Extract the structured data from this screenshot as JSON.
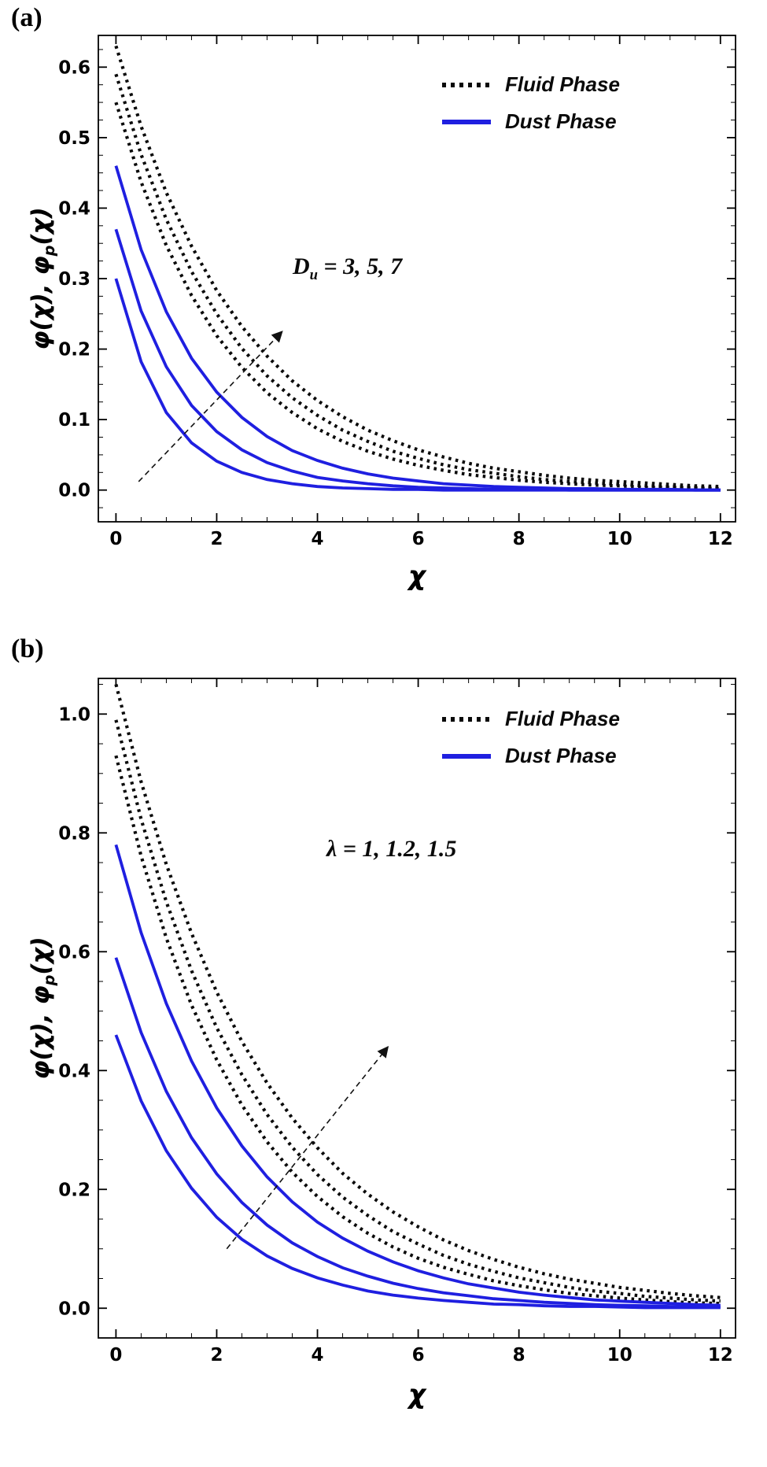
{
  "figure": {
    "colors": {
      "fluid": "#0a0a0a",
      "dust": "#1f1fe0",
      "frame": "#000000",
      "arrow": "#111111"
    },
    "panels": [
      {
        "panel_label": "(a)",
        "x_axis_label": "χ",
        "y_axis_label": {
          "pre": "φ(χ), φ",
          "sub": "p",
          "post": "(χ)"
        },
        "legend": {
          "fluid_label": "Fluid Phase",
          "dust_label": "Dust Phase"
        },
        "annotation": {
          "pre": "D",
          "sub": "u",
          "post": " = 3, 5, 7"
        }
      },
      {
        "panel_label": "(b)",
        "x_axis_label": "χ",
        "y_axis_label": {
          "pre": "φ(χ), φ",
          "sub": "p",
          "post": "(χ)"
        },
        "legend": {
          "fluid_label": "Fluid Phase",
          "dust_label": "Dust Phase"
        },
        "annotation": {
          "pre": "λ",
          "sub": "",
          "post": " = 1, 1.2, 1.5"
        }
      }
    ]
  },
  "chart_data": [
    {
      "type": "line",
      "panel": "a",
      "title": "",
      "xlabel": "χ",
      "ylabel": "φ(χ), φp(χ)",
      "xlim": [
        -0.35,
        12.3
      ],
      "ylim": [
        -0.045,
        0.645
      ],
      "xticks": [
        0,
        2,
        4,
        6,
        8,
        10,
        12
      ],
      "xtick_labels": [
        "0",
        "2",
        "4",
        "6",
        "8",
        "10",
        "12"
      ],
      "yticks": [
        0,
        0.1,
        0.2,
        0.3,
        0.4,
        0.5,
        0.6
      ],
      "ytick_labels": [
        "0.0",
        "0.1",
        "0.2",
        "0.3",
        "0.4",
        "0.5",
        "0.6"
      ],
      "xtick_minor_step": 0.5,
      "ytick_minor_step": 0.025,
      "legend": [
        "Fluid Phase",
        "Dust Phase"
      ],
      "legend_position": "top-right",
      "annotation": "Du = 3, 5, 7",
      "arrow": {
        "from": [
          0.45,
          0.012
        ],
        "to": [
          3.3,
          0.225
        ]
      },
      "x": [
        0,
        0.5,
        1,
        1.5,
        2,
        2.5,
        3,
        3.5,
        4,
        4.5,
        5,
        5.5,
        6,
        6.5,
        7,
        7.5,
        8,
        8.5,
        9,
        9.5,
        10,
        10.5,
        11,
        11.5,
        12
      ],
      "series": [
        {
          "name": "Fluid Phase, Du=3",
          "phase": "fluid",
          "values": [
            0.55,
            0.437,
            0.347,
            0.276,
            0.219,
            0.174,
            0.138,
            0.11,
            0.087,
            0.069,
            0.055,
            0.044,
            0.035,
            0.028,
            0.022,
            0.018,
            0.014,
            0.011,
            0.009,
            0.007,
            0.006,
            0.004,
            0.004,
            0.003,
            0.002
          ]
        },
        {
          "name": "Fluid Phase, Du=5",
          "phase": "fluid",
          "values": [
            0.59,
            0.476,
            0.384,
            0.31,
            0.25,
            0.201,
            0.162,
            0.131,
            0.106,
            0.085,
            0.069,
            0.055,
            0.045,
            0.036,
            0.029,
            0.024,
            0.019,
            0.015,
            0.012,
            0.01,
            0.008,
            0.006,
            0.005,
            0.004,
            0.003
          ]
        },
        {
          "name": "Fluid Phase, Du=7",
          "phase": "fluid",
          "values": [
            0.63,
            0.516,
            0.422,
            0.346,
            0.283,
            0.232,
            0.19,
            0.155,
            0.127,
            0.104,
            0.085,
            0.07,
            0.057,
            0.047,
            0.038,
            0.031,
            0.026,
            0.021,
            0.017,
            0.014,
            0.012,
            0.01,
            0.008,
            0.006,
            0.005
          ]
        },
        {
          "name": "Dust Phase, Du=3",
          "phase": "dust",
          "values": [
            0.3,
            0.182,
            0.11,
            0.067,
            0.041,
            0.025,
            0.015,
            0.009,
            0.005,
            0.003,
            0.002,
            0.001,
            0.001,
            0,
            0,
            0,
            0,
            0,
            0,
            0,
            0,
            0,
            0,
            0,
            0
          ]
        },
        {
          "name": "Dust Phase, Du=5",
          "phase": "dust",
          "values": [
            0.37,
            0.254,
            0.175,
            0.12,
            0.083,
            0.057,
            0.039,
            0.027,
            0.018,
            0.013,
            0.009,
            0.006,
            0.004,
            0.003,
            0.002,
            0.001,
            0.001,
            0.001,
            0,
            0,
            0,
            0,
            0,
            0,
            0
          ]
        },
        {
          "name": "Dust Phase, Du=7",
          "phase": "dust",
          "values": [
            0.46,
            0.341,
            0.253,
            0.187,
            0.139,
            0.103,
            0.076,
            0.056,
            0.042,
            0.031,
            0.023,
            0.017,
            0.013,
            0.009,
            0.007,
            0.005,
            0.004,
            0.003,
            0.002,
            0.002,
            0.001,
            0.001,
            0.001,
            0,
            0
          ]
        }
      ]
    },
    {
      "type": "line",
      "panel": "b",
      "title": "",
      "xlabel": "χ",
      "ylabel": "φ(χ), φp(χ)",
      "xlim": [
        -0.35,
        12.3
      ],
      "ylim": [
        -0.05,
        1.06
      ],
      "xticks": [
        0,
        2,
        4,
        6,
        8,
        10,
        12
      ],
      "xtick_labels": [
        "0",
        "2",
        "4",
        "6",
        "8",
        "10",
        "12"
      ],
      "yticks": [
        0,
        0.2,
        0.4,
        0.6,
        0.8,
        1.0
      ],
      "ytick_labels": [
        "0.0",
        "0.2",
        "0.4",
        "0.6",
        "0.8",
        "1.0"
      ],
      "xtick_minor_step": 0.5,
      "ytick_minor_step": 0.05,
      "legend": [
        "Fluid Phase",
        "Dust Phase"
      ],
      "legend_position": "top-right",
      "annotation": "λ = 1, 1.2, 1.5",
      "arrow": {
        "from": [
          2.2,
          0.1
        ],
        "to": [
          5.4,
          0.44
        ]
      },
      "x": [
        0,
        0.5,
        1,
        1.5,
        2,
        2.5,
        3,
        3.5,
        4,
        4.5,
        5,
        5.5,
        6,
        6.5,
        7,
        7.5,
        8,
        8.5,
        9,
        9.5,
        10,
        10.5,
        11,
        11.5,
        12
      ],
      "series": [
        {
          "name": "Fluid Phase, λ=1",
          "phase": "fluid",
          "values": [
            0.93,
            0.761,
            0.623,
            0.51,
            0.418,
            0.342,
            0.28,
            0.229,
            0.188,
            0.154,
            0.126,
            0.103,
            0.084,
            0.069,
            0.057,
            0.046,
            0.038,
            0.031,
            0.025,
            0.021,
            0.017,
            0.014,
            0.011,
            0.009,
            0.008
          ]
        },
        {
          "name": "Fluid Phase, λ=1.2",
          "phase": "fluid",
          "values": [
            0.99,
            0.823,
            0.684,
            0.568,
            0.472,
            0.393,
            0.326,
            0.271,
            0.225,
            0.187,
            0.156,
            0.129,
            0.108,
            0.089,
            0.074,
            0.062,
            0.051,
            0.043,
            0.035,
            0.029,
            0.025,
            0.02,
            0.017,
            0.014,
            0.012
          ]
        },
        {
          "name": "Fluid Phase, λ=1.5",
          "phase": "fluid",
          "values": [
            1.05,
            0.886,
            0.747,
            0.631,
            0.532,
            0.449,
            0.379,
            0.32,
            0.27,
            0.227,
            0.192,
            0.162,
            0.137,
            0.115,
            0.097,
            0.082,
            0.069,
            0.058,
            0.049,
            0.042,
            0.035,
            0.03,
            0.025,
            0.021,
            0.018
          ]
        },
        {
          "name": "Dust Phase, λ=1",
          "phase": "dust",
          "values": [
            0.46,
            0.349,
            0.265,
            0.202,
            0.153,
            0.116,
            0.088,
            0.067,
            0.051,
            0.039,
            0.029,
            0.022,
            0.017,
            0.013,
            0.01,
            0.007,
            0.006,
            0.004,
            0.003,
            0.003,
            0.002,
            0.001,
            0.001,
            0.001,
            0.001
          ]
        },
        {
          "name": "Dust Phase, λ=1.2",
          "phase": "dust",
          "values": [
            0.59,
            0.464,
            0.365,
            0.287,
            0.226,
            0.178,
            0.14,
            0.11,
            0.087,
            0.068,
            0.054,
            0.042,
            0.033,
            0.026,
            0.021,
            0.016,
            0.013,
            0.01,
            0.008,
            0.006,
            0.005,
            0.004,
            0.003,
            0.002,
            0.002
          ]
        },
        {
          "name": "Dust Phase, λ=1.5",
          "phase": "dust",
          "values": [
            0.78,
            0.632,
            0.513,
            0.416,
            0.337,
            0.273,
            0.221,
            0.179,
            0.145,
            0.118,
            0.096,
            0.078,
            0.063,
            0.051,
            0.041,
            0.034,
            0.027,
            0.022,
            0.018,
            0.014,
            0.012,
            0.01,
            0.008,
            0.006,
            0.005
          ]
        }
      ]
    }
  ]
}
